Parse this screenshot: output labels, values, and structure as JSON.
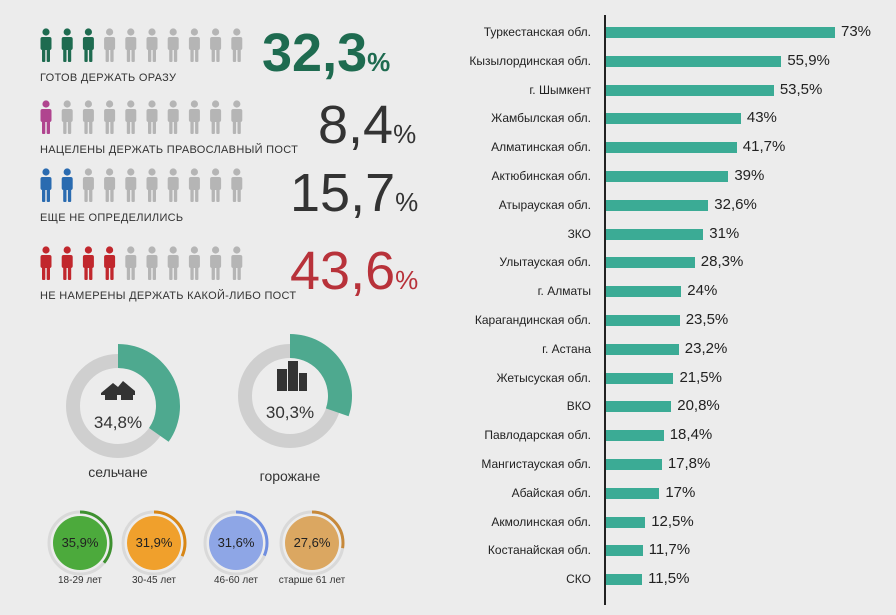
{
  "groups": [
    {
      "label": "ГОТОВ ДЕРЖАТЬ ОРАЗУ",
      "value": "32,3",
      "unit": "%",
      "color": "#1e6b50",
      "filled": 3
    },
    {
      "label": "НАЦЕЛЕНЫ ДЕРЖАТЬ ПРАВОСЛАВНЫЙ ПОСТ",
      "value": "8,4",
      "unit": "%",
      "color": "#b0448f",
      "filled": 1
    },
    {
      "label": "ЕЩЕ НЕ ОПРЕДЕЛИЛИСЬ",
      "value": "15,7",
      "unit": "%",
      "color": "#2a6bb0",
      "filled": 2
    },
    {
      "label": "НЕ НАМЕРЕНЫ ДЕРЖАТЬ КАКОЙ-ЛИБО ПОСТ",
      "value": "43,6",
      "unit": "%",
      "color": "#c1272d",
      "filled": 4
    }
  ],
  "group_value_colors": [
    "#1e6b50",
    "#333333",
    "#333333",
    "#b8323a"
  ],
  "settlement": [
    {
      "label": "сельчане",
      "value_text": "34,8%",
      "value": 34.8,
      "icon": "house-icon"
    },
    {
      "label": "горожане",
      "value_text": "30,3%",
      "value": 30.3,
      "icon": "building-icon"
    }
  ],
  "donut_colors": {
    "fill": "#4ea98f",
    "track": "#cfcfcf"
  },
  "age_groups": [
    {
      "label": "18-29 лет",
      "value_text": "35,9%",
      "value": 35.9,
      "color": "#4caa3c",
      "ring": "#3e9130"
    },
    {
      "label": "30-45 лет",
      "value_text": "31,9%",
      "value": 31.9,
      "color": "#f0a02c",
      "ring": "#d88615"
    },
    {
      "label": "46-60 лет",
      "value_text": "31,6%",
      "value": 31.6,
      "color": "#8ea6e6",
      "ring": "#6f8ee0"
    },
    {
      "label": "старше 61 лет",
      "value_text": "27,6%",
      "value": 27.6,
      "color": "#dba761",
      "ring": "#c7893a"
    }
  ],
  "chart_data": {
    "type": "bar",
    "orientation": "horizontal",
    "bar_color": "#3bab95",
    "categories": [
      "Туркестанская обл.",
      "Кызылординская обл.",
      "г. Шымкент",
      "Жамбылская обл.",
      "Алматинская обл.",
      "Актюбинская обл.",
      "Атырауская обл.",
      "ЗКО",
      "Улытауская обл.",
      "г. Алматы",
      "Карагандинская обл.",
      "г. Астана",
      "Жетысуская обл.",
      "ВКО",
      "Павлодарская обл.",
      "Мангистауская обл.",
      "Абайская обл.",
      "Акмолинская обл.",
      "Костанайская обл.",
      "СКО"
    ],
    "values": [
      73,
      55.9,
      53.5,
      43,
      41.7,
      39,
      32.6,
      31,
      28.3,
      24,
      23.5,
      23.2,
      21.5,
      20.8,
      18.4,
      17.8,
      17,
      12.5,
      11.7,
      11.5
    ],
    "value_labels": [
      "73%",
      "55,9%",
      "53,5%",
      "43%",
      "41,7%",
      "39%",
      "32,6%",
      "31%",
      "28,3%",
      "24%",
      "23,5%",
      "23,2%",
      "21,5%",
      "20,8%",
      "18,4%",
      "17,8%",
      "17%",
      "12,5%",
      "11,7%",
      "11,5%"
    ]
  }
}
